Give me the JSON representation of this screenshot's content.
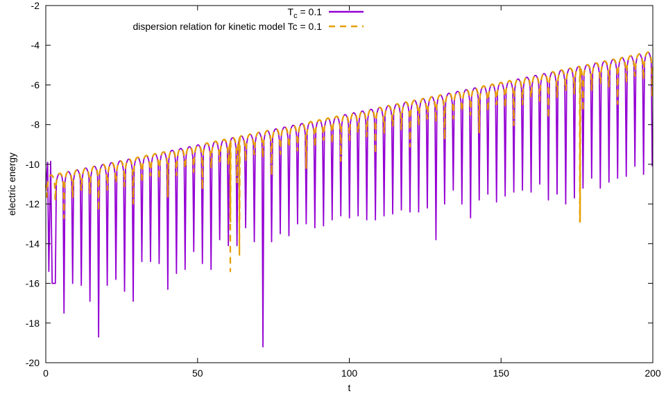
{
  "chart_data": {
    "type": "line",
    "xlabel": "t",
    "ylabel": "electric energy",
    "xlim": [
      0,
      200
    ],
    "ylim": [
      -20,
      -2
    ],
    "x_ticks": [
      "0",
      "50",
      "100",
      "150",
      "200"
    ],
    "y_ticks": [
      "-20",
      "-18",
      "-16",
      "-14",
      "-12",
      "-10",
      "-8",
      "-6",
      "-4",
      "-2"
    ],
    "legend_position": "top-center",
    "grid": false,
    "series": [
      {
        "name": "T",
        "name_sub": "c",
        "name_suffix": " = 0.1",
        "color": "#9400d3",
        "style": "solid",
        "model": {
          "peak_start": -10.6,
          "peak_slope": 0.0315,
          "period": 2.85,
          "t_start": 0.3,
          "initial_points": [
            [
              0,
              -11.2
            ],
            [
              0.6,
              -9.9
            ],
            [
              1.0,
              -15.4
            ],
            [
              1.6,
              -9.85
            ],
            [
              2.1,
              -16.0
            ]
          ],
          "dips": [
            -16.0,
            -17.5,
            -16.0,
            -16.1,
            -16.9,
            -18.7,
            -16.1,
            -15.8,
            -16.4,
            -16.9,
            -14.9,
            -14.9,
            -15.0,
            -16.3,
            -15.5,
            -15.3,
            -14.4,
            -15.0,
            -15.3,
            -13.8,
            -14.1,
            -14.1,
            -13.2,
            -13.9,
            -19.2,
            -13.9,
            -13.5,
            -13.6,
            -13.0,
            -13.0,
            -13.2,
            -13.1,
            -12.8,
            -12.6,
            -12.7,
            -12.6,
            -12.8,
            -12.8,
            -12.6,
            -12.5,
            -12.3,
            -12.4,
            -12.4,
            -12.2,
            -13.8,
            -12.0,
            -11.3,
            -12.0,
            -12.7,
            -11.8,
            -11.5,
            -11.9,
            -11.6,
            -11.4,
            -11.3,
            -11.4,
            -11.0,
            -11.8,
            -11.5,
            -12.0,
            -11.7,
            -11.2,
            -10.7,
            -11.2,
            -10.9,
            -10.7,
            -10.6,
            -10.1,
            -10.5,
            -10.1
          ]
        }
      },
      {
        "name": "dispersion relation for kinetic model Tc = 0.1",
        "color": "#e69f00",
        "style": "dashed",
        "model": {
          "peak_start": -10.6,
          "peak_slope": 0.0315,
          "period": 2.85,
          "t_start": 0.3,
          "dip_depth": 2.3,
          "deep_dips": [
            [
              60.8,
              -15.4
            ],
            [
              63.8,
              -14.6
            ],
            [
              176.0,
              -11.7
            ]
          ]
        }
      }
    ]
  }
}
